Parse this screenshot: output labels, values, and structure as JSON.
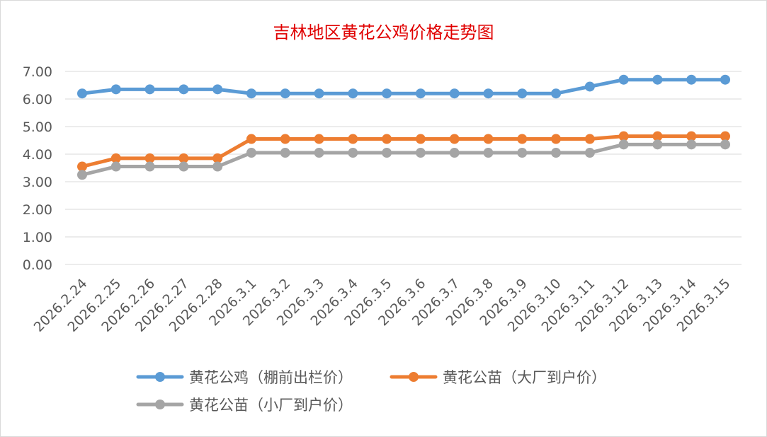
{
  "chart_data": {
    "type": "line",
    "title": "吉林地区黄花公鸡价格走势图",
    "xlabel": "",
    "ylabel": "",
    "ylim": [
      0,
      7
    ],
    "yticks": [
      "0.00",
      "1.00",
      "2.00",
      "3.00",
      "4.00",
      "5.00",
      "6.00",
      "7.00"
    ],
    "grid": true,
    "legend_position": "bottom",
    "categories": [
      "2026.2.24",
      "2026.2.25",
      "2026.2.26",
      "2026.2.27",
      "2026.2.28",
      "2026.3.1",
      "2026.3.2",
      "2026.3.3",
      "2026.3.4",
      "2026.3.5",
      "2026.3.6",
      "2026.3.7",
      "2026.3.8",
      "2026.3.9",
      "2026.3.10",
      "2026.3.11",
      "2026.3.12",
      "2026.3.13",
      "2026.3.14",
      "2026.3.15"
    ],
    "series": [
      {
        "name": "黄花公鸡（棚前出栏价）",
        "color": "#5b9bd5",
        "values": [
          6.2,
          6.35,
          6.35,
          6.35,
          6.35,
          6.2,
          6.2,
          6.2,
          6.2,
          6.2,
          6.2,
          6.2,
          6.2,
          6.2,
          6.2,
          6.45,
          6.7,
          6.7,
          6.7,
          6.7
        ]
      },
      {
        "name": "黄花公苗（大厂到户价）",
        "color": "#ed7d31",
        "values": [
          3.55,
          3.85,
          3.85,
          3.85,
          3.85,
          4.55,
          4.55,
          4.55,
          4.55,
          4.55,
          4.55,
          4.55,
          4.55,
          4.55,
          4.55,
          4.55,
          4.65,
          4.65,
          4.65,
          4.65
        ]
      },
      {
        "name": "黄花公苗（小厂到户价）",
        "color": "#a5a5a5",
        "values": [
          3.25,
          3.55,
          3.55,
          3.55,
          3.55,
          4.05,
          4.05,
          4.05,
          4.05,
          4.05,
          4.05,
          4.05,
          4.05,
          4.05,
          4.05,
          4.05,
          4.35,
          4.35,
          4.35,
          4.35
        ]
      }
    ]
  }
}
